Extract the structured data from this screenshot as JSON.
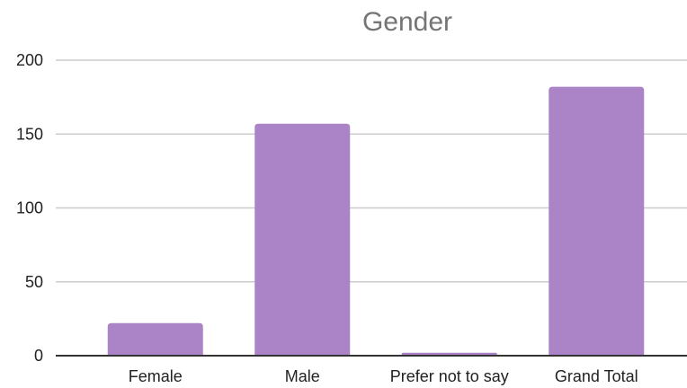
{
  "chart_data": {
    "type": "bar",
    "title": "Gender",
    "categories": [
      "Female",
      "Male",
      "Prefer not to say",
      "Grand Total"
    ],
    "values": [
      22,
      157,
      2,
      182
    ],
    "ylim": [
      0,
      200
    ],
    "yticks": [
      0,
      50,
      100,
      150,
      200
    ],
    "grid": true,
    "colors": {
      "bar": "#ab84c7",
      "grid": "#cccccc",
      "axis": "#333333",
      "title": "#757575"
    }
  }
}
